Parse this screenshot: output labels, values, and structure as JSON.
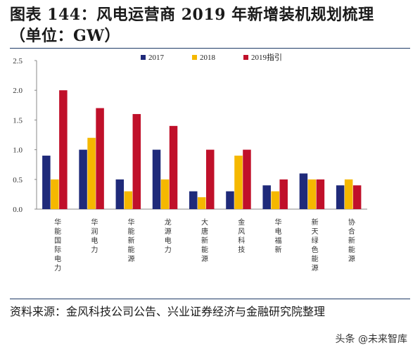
{
  "title": {
    "line1": "图表 144：风电运营商 2019 年新增装机规划梳理",
    "line2": "（单位：GW）"
  },
  "chart_data": {
    "type": "bar",
    "categories": [
      "华能国际电力",
      "华润电力",
      "华能新能源",
      "龙源电力",
      "大唐新能源",
      "金风科技",
      "华电福新",
      "新天绿色能源",
      "协合新能源"
    ],
    "series": [
      {
        "name": "2017",
        "color": "#1f2a7a",
        "values": [
          0.9,
          1.0,
          0.5,
          1.0,
          0.3,
          0.3,
          0.4,
          0.6,
          0.4
        ]
      },
      {
        "name": "2018",
        "color": "#f5b800",
        "values": [
          0.5,
          1.2,
          0.3,
          0.5,
          0.2,
          0.9,
          0.3,
          0.5,
          0.5
        ]
      },
      {
        "name": "2019指引",
        "color": "#c0102a",
        "values": [
          2.0,
          1.7,
          1.6,
          1.4,
          1.0,
          1.0,
          0.5,
          0.5,
          0.4
        ]
      }
    ],
    "ylim": [
      0,
      2.5
    ],
    "yticks": [
      "0.0",
      "0.5",
      "1.0",
      "1.5",
      "2.0",
      "2.5"
    ],
    "legend_position": "top",
    "grid": false
  },
  "source": "资料来源：金风科技公司公告、兴业证券经济与金融研究院整理",
  "watermark": "头条 @未来智库"
}
